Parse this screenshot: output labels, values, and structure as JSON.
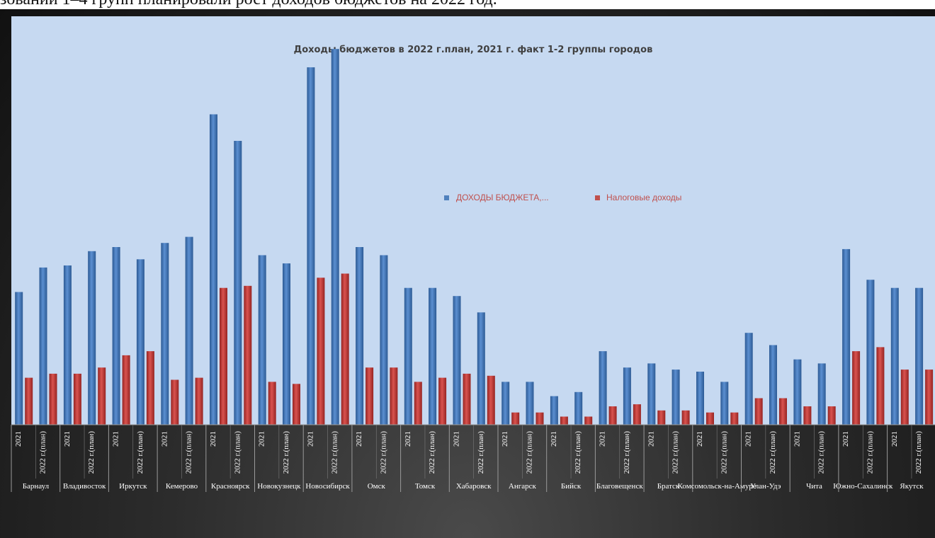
{
  "header_text": "зований 1–4 групп планировали рост доходов бюджетов на 2022 год.",
  "chart_data": {
    "type": "bar",
    "title": "Доходы бюджетов в 2022 г.план, 2021 г. факт 1-2 группы городов",
    "legend_position": "center-right",
    "grid": false,
    "ylim": [
      0,
      100
    ],
    "series": [
      {
        "name": "ДОХОДЫ БЮДЖЕТА,...",
        "color": "#4f81bd",
        "values": [
          32.5,
          38.5,
          39,
          42.5,
          43.5,
          40.5,
          44.5,
          46,
          76,
          69.5,
          41.5,
          39.5,
          87.5,
          92,
          43.5,
          41.5,
          33.5,
          33.5,
          31.5,
          27.5,
          10.5,
          10.5,
          7,
          8,
          18,
          14,
          15,
          13.5,
          13,
          10.5,
          22.5,
          19.5,
          16,
          15,
          43,
          35.5,
          33.5,
          33.5
        ]
      },
      {
        "name": "Налоговые доходы",
        "color": "#c0504d",
        "values": [
          11.5,
          12.5,
          12.5,
          14,
          17,
          18,
          11,
          11.5,
          33.5,
          34,
          10.5,
          10,
          36,
          37,
          14,
          14,
          10.5,
          11.5,
          12.5,
          12,
          3,
          3,
          2,
          2,
          4.5,
          5,
          3.5,
          3.5,
          3,
          3,
          6.5,
          6.5,
          4.5,
          4.5,
          18,
          19,
          13.5,
          13.5
        ]
      }
    ],
    "bar_sublabels": [
      "2021",
      "2022 г.(план)"
    ],
    "cities": [
      "Барнаул",
      "Владивосток",
      "Иркутск",
      "Кемерово",
      "Красноярск",
      "Новокузнецк",
      "Новосибирск",
      "Омск",
      "Томск",
      "Хабаровск",
      "Ангарск",
      "Бийск",
      "Благовещенск",
      "Братск",
      "Комсомольск-на-Амуре",
      "Улан-Удэ",
      "Чита",
      "Южно-Сахалинск",
      "Якутск"
    ]
  }
}
